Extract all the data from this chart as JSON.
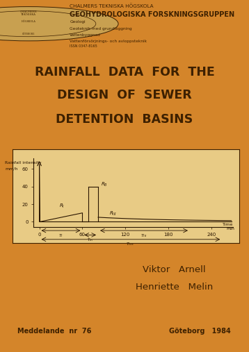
{
  "bg_color": "#D4852A",
  "dark_color": "#3D2000",
  "university": "CHALMERS TEKNISKA HÖGSKOLA",
  "group": "GEOHYDROLOGISKA FORSKNINGSGRUPPEN",
  "departments": [
    "Geologi",
    "Geoteknik med grundläggning",
    "Vattenbyggnad",
    "Vattenförsörjnings- och avloppsteknik"
  ],
  "issn": "ISSN 0347-8165",
  "title_line1": "RAINFALL  DATA  FOR  THE",
  "title_line2": "DESIGN  OF  SEWER",
  "title_line3": "DETENTION  BASINS",
  "author1": "Viktor   Arnell",
  "author2": "Henriette   Melin",
  "meddelande": "Meddelande  nr  76",
  "goteborg": "Göteborg   1984",
  "chart_bg": "#E8CB85",
  "line_color": "#2A1500",
  "ylabel_line1": "Rainfall intensity",
  "ylabel_line2": "mm/h",
  "yticks": [
    0,
    20,
    40,
    60
  ],
  "xticks": [
    0,
    60,
    120,
    180,
    240
  ]
}
